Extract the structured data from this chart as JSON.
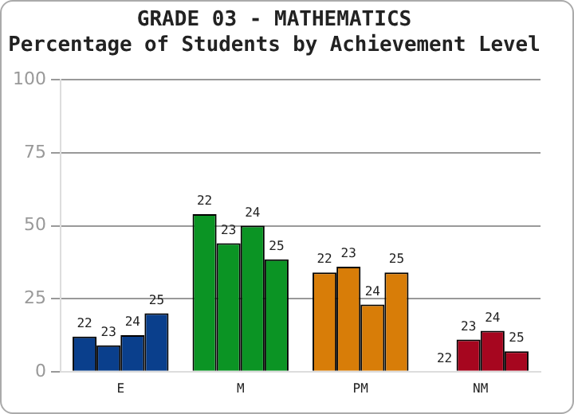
{
  "chart_data": {
    "type": "bar",
    "title": "GRADE 03 - MATHEMATICS",
    "subtitle": "Percentage of Students by Achievement Level",
    "categories": [
      "E",
      "M",
      "PM",
      "NM"
    ],
    "series": [
      {
        "name": "22",
        "colors": [
          "#0a3f8c",
          "#0b9424",
          "#d87d08",
          "#a6061f"
        ],
        "values": [
          12,
          54,
          34,
          0
        ]
      },
      {
        "name": "23",
        "colors": [
          "#0a3f8c",
          "#0b9424",
          "#d87d08",
          "#a6061f"
        ],
        "values": [
          9,
          44,
          36,
          11
        ]
      },
      {
        "name": "24",
        "colors": [
          "#0a3f8c",
          "#0b9424",
          "#d87d08",
          "#a6061f"
        ],
        "values": [
          12.5,
          50,
          23,
          14
        ]
      },
      {
        "name": "25",
        "colors": [
          "#0a3f8c",
          "#0b9424",
          "#d87d08",
          "#a6061f"
        ],
        "values": [
          20,
          38.5,
          34,
          7
        ]
      }
    ],
    "ylim": [
      0,
      100
    ],
    "yticks": [
      0,
      25,
      50,
      75,
      100
    ],
    "grid": "y",
    "legend": false
  }
}
